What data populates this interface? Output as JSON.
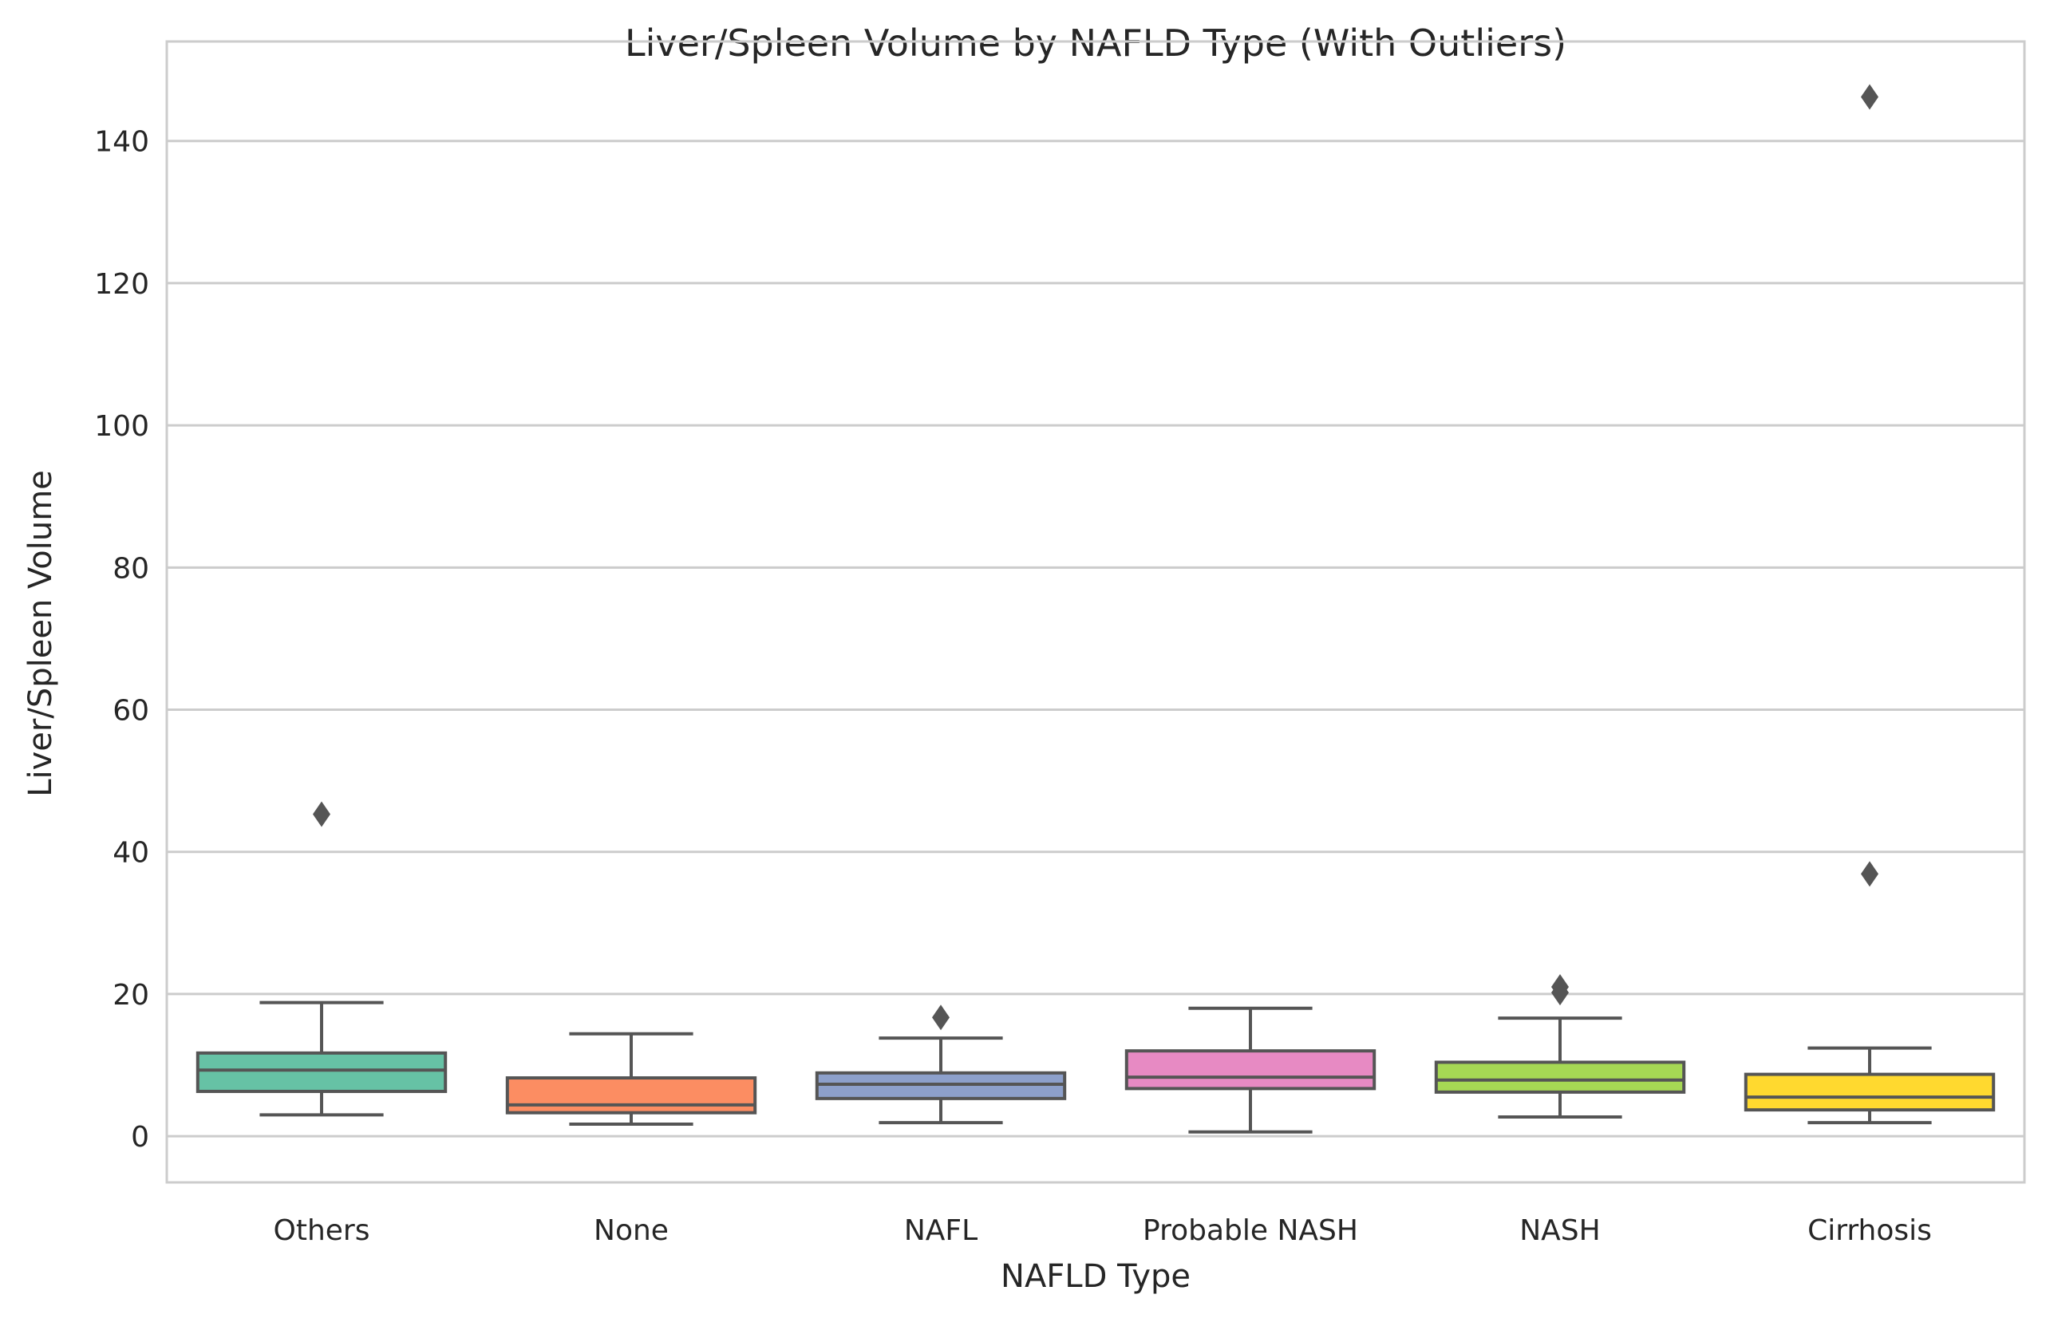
{
  "chart_data": {
    "type": "box",
    "title": "Liver/Spleen Volume by NAFLD Type (With Outliers)",
    "xlabel": "NAFLD Type",
    "ylabel": "Liver/Spleen Volume",
    "ylim": [
      -6.5,
      154
    ],
    "yticks": [
      0,
      20,
      40,
      60,
      80,
      100,
      120,
      140
    ],
    "grid": "horizontal",
    "legend": "none",
    "categories": [
      "Others",
      "None",
      "NAFL",
      "Probable NASH",
      "NASH",
      "Cirrhosis"
    ],
    "boxes": [
      {
        "category": "Others",
        "color": "#66c2a5",
        "whisker_low": 3.0,
        "q1": 6.3,
        "median": 9.3,
        "q3": 11.7,
        "whisker_high": 18.8,
        "outliers": [
          45.3
        ]
      },
      {
        "category": "None",
        "color": "#fc8d62",
        "whisker_low": 1.7,
        "q1": 3.3,
        "median": 4.4,
        "q3": 8.2,
        "whisker_high": 14.4,
        "outliers": []
      },
      {
        "category": "NAFL",
        "color": "#8da0cb",
        "whisker_low": 1.9,
        "q1": 5.3,
        "median": 7.3,
        "q3": 8.9,
        "whisker_high": 13.8,
        "outliers": [
          16.7
        ]
      },
      {
        "category": "Probable NASH",
        "color": "#e78ac3",
        "whisker_low": 0.6,
        "q1": 6.7,
        "median": 8.3,
        "q3": 12.0,
        "whisker_high": 18.0,
        "outliers": []
      },
      {
        "category": "NASH",
        "color": "#a6d854",
        "whisker_low": 2.7,
        "q1": 6.2,
        "median": 7.9,
        "q3": 10.4,
        "whisker_high": 16.6,
        "outliers": [
          20.2,
          21.0
        ]
      },
      {
        "category": "Cirrhosis",
        "color": "#ffd92f",
        "whisker_low": 1.9,
        "q1": 3.7,
        "median": 5.5,
        "q3": 8.7,
        "whisker_high": 12.4,
        "outliers": [
          36.9,
          146.2
        ]
      }
    ]
  }
}
